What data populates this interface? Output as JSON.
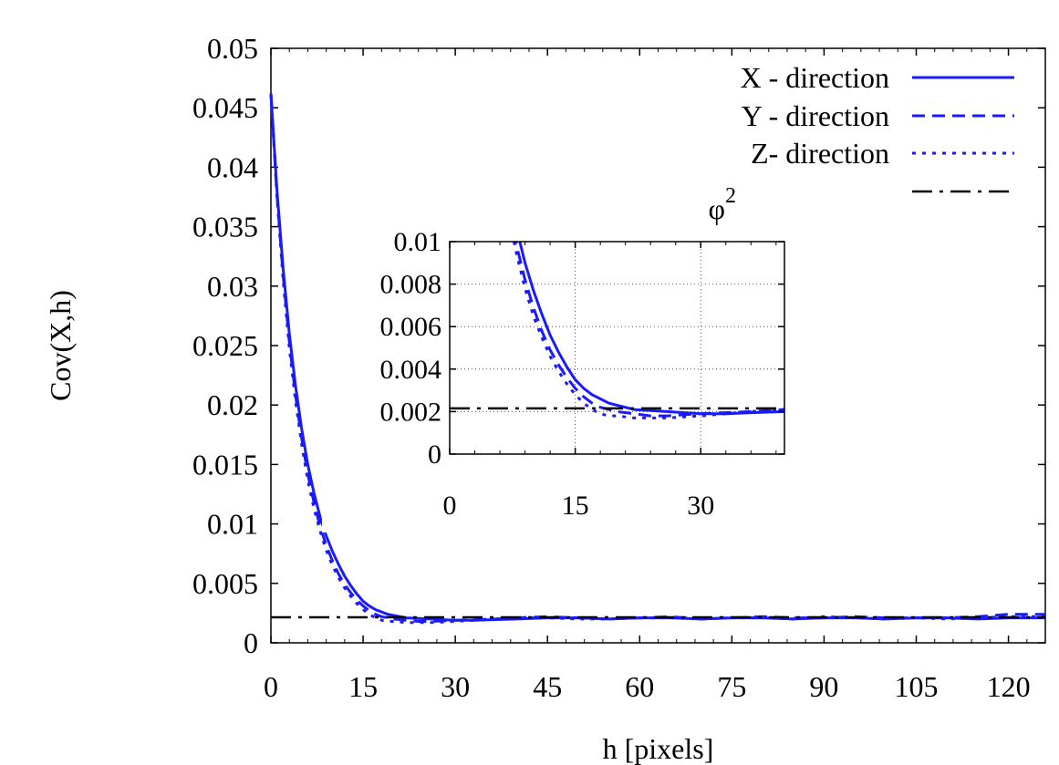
{
  "chart_data": [
    {
      "type": "line",
      "title": "",
      "xlabel": "h [pixels]",
      "ylabel": "Cov(X,h)",
      "xlim": [
        0,
        126
      ],
      "ylim": [
        0,
        0.05
      ],
      "xticks": [
        0,
        15,
        30,
        45,
        60,
        75,
        90,
        105,
        120
      ],
      "xtick_labels": [
        "0",
        "15",
        "30",
        "45",
        "60",
        "75",
        "90",
        "105",
        "120"
      ],
      "yticks": [
        0,
        0.005,
        0.01,
        0.015,
        0.02,
        0.025,
        0.03,
        0.035,
        0.04,
        0.045,
        0.05
      ],
      "ytick_labels": [
        "0",
        "0.005",
        "0.01",
        "0.015",
        "0.02",
        "0.025",
        "0.03",
        "0.035",
        "0.04",
        "0.045",
        "0.05"
      ],
      "grid": false,
      "legend_position": "top-right",
      "series": [
        {
          "name": "X - direction",
          "style": "solid",
          "color": "#1a1aff",
          "x": [
            0,
            1,
            2,
            3,
            4,
            5,
            6,
            7,
            8,
            9,
            10,
            11,
            12,
            13,
            14,
            15,
            16,
            17,
            18,
            19,
            20,
            22,
            24,
            26,
            28,
            30,
            33,
            36,
            40,
            45,
            50,
            55,
            60,
            65,
            70,
            75,
            80,
            85,
            90,
            95,
            100,
            105,
            110,
            115,
            120,
            126
          ],
          "y": [
            0.0462,
            0.038,
            0.0314,
            0.026,
            0.0216,
            0.018,
            0.015,
            0.0126,
            0.0106,
            0.009,
            0.0077,
            0.0066,
            0.0056,
            0.0048,
            0.0041,
            0.0035,
            0.0031,
            0.0028,
            0.0026,
            0.0024,
            0.0023,
            0.0021,
            0.00205,
            0.002,
            0.00195,
            0.0019,
            0.0019,
            0.00195,
            0.002,
            0.0021,
            0.0021,
            0.002,
            0.0021,
            0.0021,
            0.002,
            0.0021,
            0.0021,
            0.002,
            0.0021,
            0.0021,
            0.002,
            0.0021,
            0.0021,
            0.002,
            0.0021,
            0.0021
          ]
        },
        {
          "name": "Y - direction",
          "style": "dashed",
          "color": "#1a1aff",
          "x": [
            0,
            1,
            2,
            3,
            4,
            5,
            6,
            7,
            8,
            9,
            10,
            11,
            12,
            13,
            14,
            15,
            16,
            17,
            18,
            19,
            20,
            22,
            24,
            26,
            28,
            30,
            33,
            36,
            40,
            45,
            50,
            55,
            60,
            65,
            70,
            75,
            80,
            85,
            90,
            95,
            100,
            105,
            110,
            115,
            120,
            126
          ],
          "y": [
            0.0462,
            0.0376,
            0.0308,
            0.0253,
            0.0208,
            0.0172,
            0.0142,
            0.0118,
            0.0098,
            0.0082,
            0.0069,
            0.0058,
            0.0049,
            0.0042,
            0.0036,
            0.0031,
            0.0027,
            0.0024,
            0.0022,
            0.0021,
            0.002,
            0.0019,
            0.0018,
            0.0018,
            0.00185,
            0.0019,
            0.00195,
            0.002,
            0.0021,
            0.0022,
            0.0021,
            0.002,
            0.0021,
            0.0022,
            0.002,
            0.0021,
            0.0022,
            0.0021,
            0.0021,
            0.0022,
            0.0021,
            0.0021,
            0.0021,
            0.0022,
            0.0024,
            0.0024
          ]
        },
        {
          "name": "Z- direction",
          "style": "dotted",
          "color": "#1a1aff",
          "x": [
            0,
            1,
            2,
            3,
            4,
            5,
            6,
            7,
            8,
            9,
            10,
            11,
            12,
            13,
            14,
            15,
            16,
            17,
            18,
            19,
            20,
            22,
            24,
            26,
            28,
            30,
            33,
            36,
            40,
            45,
            50,
            55,
            60,
            65,
            70,
            75,
            80,
            85,
            90,
            95,
            100,
            105,
            110,
            115,
            120,
            126
          ],
          "y": [
            0.0462,
            0.0374,
            0.0304,
            0.0248,
            0.0203,
            0.0167,
            0.0137,
            0.0113,
            0.0094,
            0.0078,
            0.0065,
            0.0055,
            0.0046,
            0.0039,
            0.0033,
            0.0028,
            0.0024,
            0.0021,
            0.0019,
            0.0018,
            0.0018,
            0.0017,
            0.0017,
            0.0017,
            0.00175,
            0.0018,
            0.0019,
            0.002,
            0.0021,
            0.0021,
            0.002,
            0.002,
            0.0021,
            0.0021,
            0.002,
            0.0021,
            0.0021,
            0.002,
            0.0022,
            0.0021,
            0.002,
            0.0021,
            0.002,
            0.0021,
            0.0022,
            0.0022
          ]
        },
        {
          "name": "φ2",
          "name_base": "φ",
          "name_sup": "2",
          "style": "dash-dot",
          "color": "#000000",
          "x": [
            0,
            126
          ],
          "y": [
            0.00215,
            0.00215
          ]
        }
      ]
    },
    {
      "type": "line",
      "title": "",
      "xlabel": "",
      "ylabel": "",
      "inset": true,
      "xlim": [
        0,
        40
      ],
      "ylim": [
        0,
        0.01
      ],
      "xticks": [
        0,
        15,
        30
      ],
      "xtick_labels": [
        "0",
        "15",
        "30"
      ],
      "yticks": [
        0,
        0.002,
        0.004,
        0.006,
        0.008,
        0.01
      ],
      "ytick_labels": [
        "0",
        "0.002",
        "0.004",
        "0.006",
        "0.008",
        "0.01"
      ],
      "grid": true,
      "series_from_main": true
    }
  ]
}
